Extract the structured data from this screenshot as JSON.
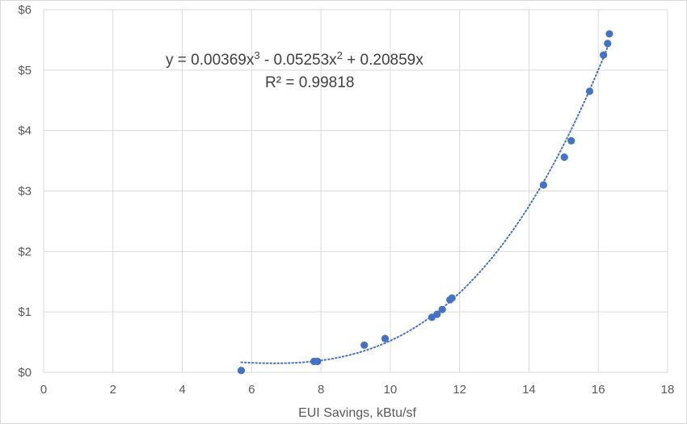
{
  "chart_data": {
    "type": "scatter",
    "title": "",
    "xlabel": "EUI Savings, kBtu/sf",
    "ylabel": "",
    "xlim": [
      0,
      18
    ],
    "ylim": [
      0,
      6
    ],
    "x_ticks": [
      0,
      2,
      4,
      6,
      8,
      10,
      12,
      14,
      16,
      18
    ],
    "x_tick_labels": [
      "0",
      "2",
      "4",
      "6",
      "8",
      "10",
      "12",
      "14",
      "16",
      "18"
    ],
    "y_ticks": [
      0,
      1,
      2,
      3,
      4,
      5,
      6
    ],
    "y_tick_labels": [
      "$0",
      "$1",
      "$2",
      "$3",
      "$4",
      "$5",
      "$6"
    ],
    "grid": true,
    "marker_color": "#4472c4",
    "series": [
      {
        "points": [
          {
            "x": 5.7,
            "y": 0.03
          },
          {
            "x": 7.8,
            "y": 0.18
          },
          {
            "x": 7.9,
            "y": 0.18
          },
          {
            "x": 9.25,
            "y": 0.45
          },
          {
            "x": 9.85,
            "y": 0.56
          },
          {
            "x": 11.2,
            "y": 0.91
          },
          {
            "x": 11.35,
            "y": 0.96
          },
          {
            "x": 11.5,
            "y": 1.04
          },
          {
            "x": 11.72,
            "y": 1.2
          },
          {
            "x": 11.78,
            "y": 1.23
          },
          {
            "x": 14.42,
            "y": 3.1
          },
          {
            "x": 15.02,
            "y": 3.56
          },
          {
            "x": 15.22,
            "y": 3.83
          },
          {
            "x": 15.75,
            "y": 4.65
          },
          {
            "x": 16.15,
            "y": 5.25
          },
          {
            "x": 16.27,
            "y": 5.44
          },
          {
            "x": 16.32,
            "y": 5.6
          }
        ]
      }
    ],
    "trendline": {
      "type": "polynomial",
      "order": 3,
      "coefficients": {
        "x3": 0.00369,
        "x2": -0.05253,
        "x1": 0.20859
      },
      "x_range": [
        5.7,
        16.32
      ],
      "style": "dotted"
    },
    "annotations": {
      "equation_prefix": "y = 0.00369x",
      "equation_exp1": "3",
      "equation_middle": " - 0.05253x",
      "equation_exp2": "2",
      "equation_suffix": " + 0.20859x",
      "r_squared": "R² = 0.99818"
    }
  }
}
